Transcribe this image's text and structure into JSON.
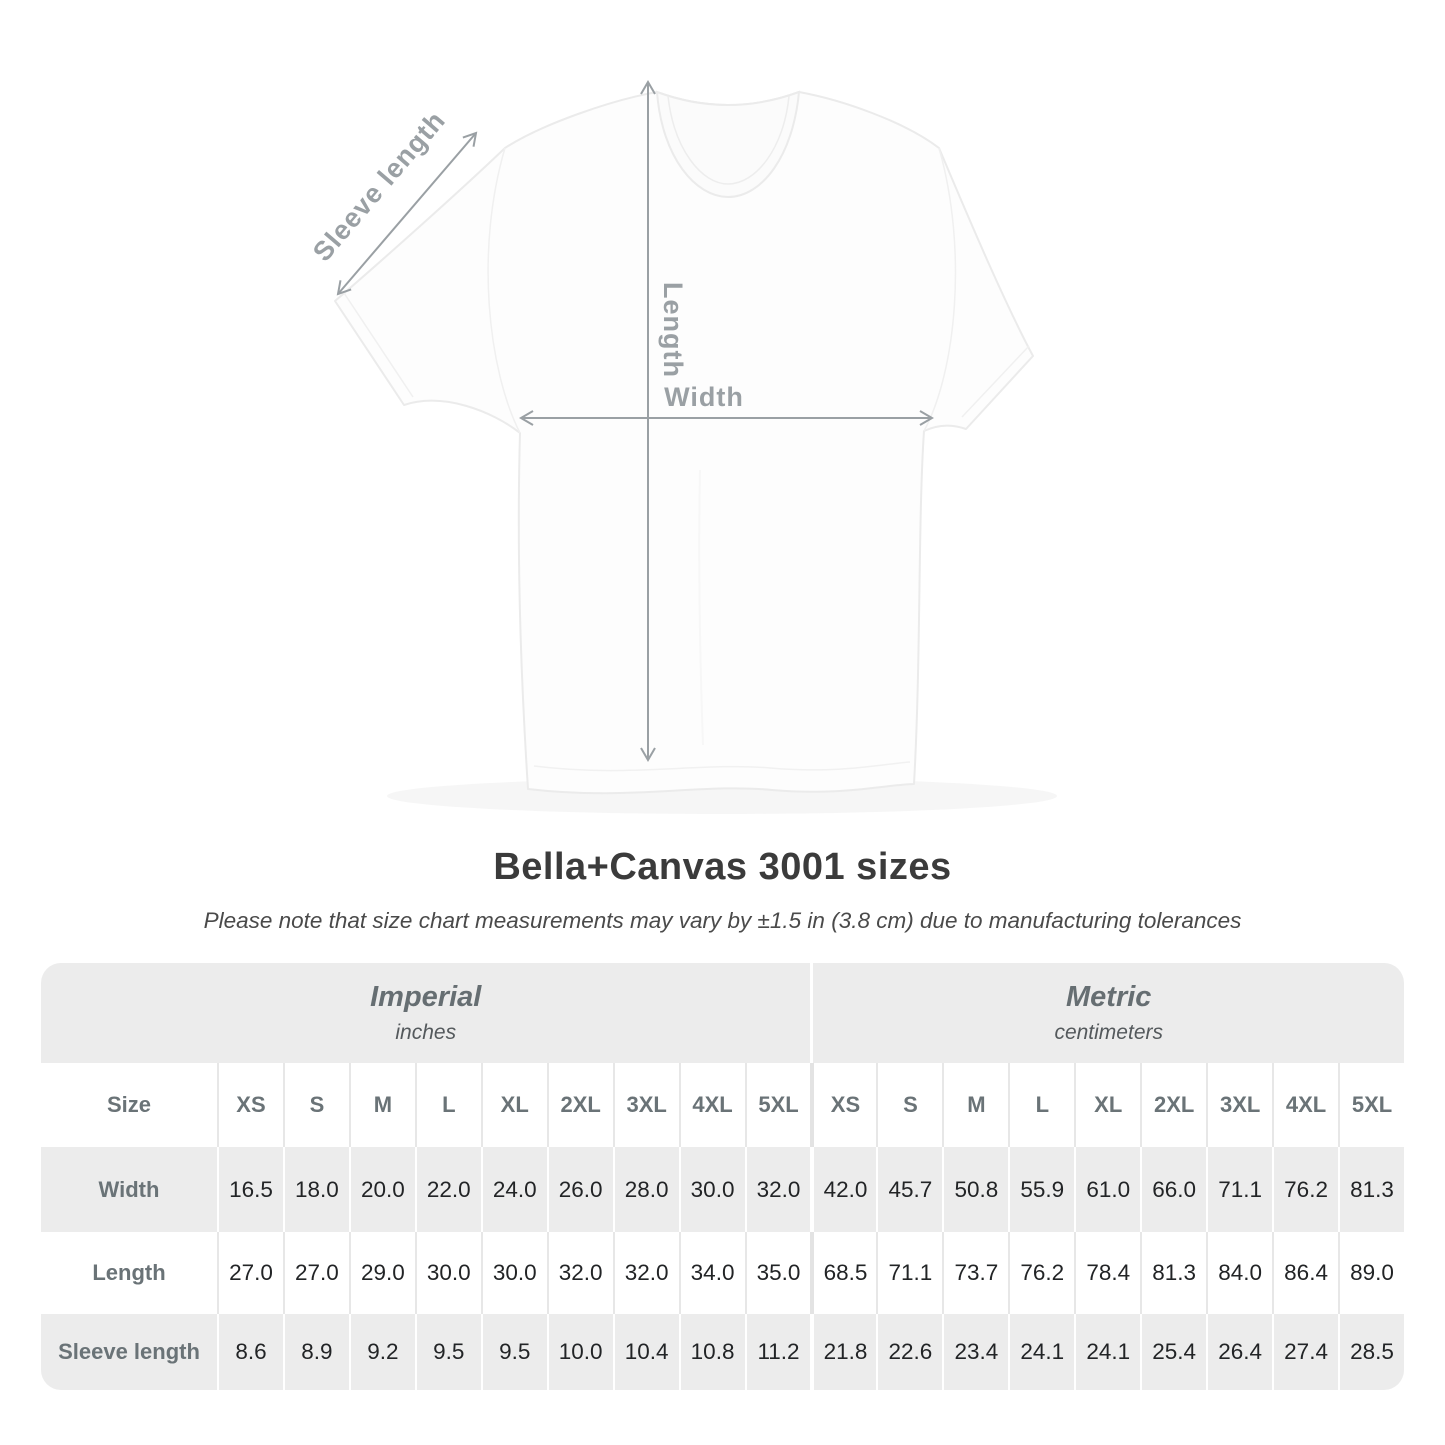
{
  "figure": {
    "sleeve_length_label": "Sleeve length",
    "length_label": "Length",
    "width_label": "Width"
  },
  "title": "Bella+Canvas 3001 sizes",
  "subtitle": "Please note that size chart measurements may vary by ±1.5 in (3.8 cm) due to manufacturing tolerances",
  "table": {
    "size_column_label": "Size",
    "unit_groups": [
      {
        "name": "Imperial",
        "unit": "inches"
      },
      {
        "name": "Metric",
        "unit": "centimeters"
      }
    ],
    "sizes": [
      "XS",
      "S",
      "M",
      "L",
      "XL",
      "2XL",
      "3XL",
      "4XL",
      "5XL"
    ],
    "rows": [
      {
        "label": "Width",
        "imperial": [
          "16.5",
          "18.0",
          "20.0",
          "22.0",
          "24.0",
          "26.0",
          "28.0",
          "30.0",
          "32.0"
        ],
        "metric": [
          "42.0",
          "45.7",
          "50.8",
          "55.9",
          "61.0",
          "66.0",
          "71.1",
          "76.2",
          "81.3"
        ]
      },
      {
        "label": "Length",
        "imperial": [
          "27.0",
          "27.0",
          "29.0",
          "30.0",
          "30.0",
          "32.0",
          "32.0",
          "34.0",
          "35.0"
        ],
        "metric": [
          "68.5",
          "71.1",
          "73.7",
          "76.2",
          "78.4",
          "81.3",
          "84.0",
          "86.4",
          "89.0"
        ]
      },
      {
        "label": "Sleeve length",
        "imperial": [
          "8.6",
          "8.9",
          "9.2",
          "9.5",
          "9.5",
          "10.0",
          "10.4",
          "10.8",
          "11.2"
        ],
        "metric": [
          "21.8",
          "22.6",
          "23.4",
          "24.1",
          "24.1",
          "25.4",
          "26.4",
          "27.4",
          "28.5"
        ]
      }
    ]
  },
  "chart_data": {
    "type": "table",
    "title": "Bella+Canvas 3001 sizes",
    "note": "Please note that size chart measurements may vary by ±1.5 in (3.8 cm) due to manufacturing tolerances",
    "units": {
      "imperial": "inches",
      "metric": "centimeters"
    },
    "sizes": [
      "XS",
      "S",
      "M",
      "L",
      "XL",
      "2XL",
      "3XL",
      "4XL",
      "5XL"
    ],
    "measurements": [
      {
        "name": "Width",
        "imperial": [
          16.5,
          18.0,
          20.0,
          22.0,
          24.0,
          26.0,
          28.0,
          30.0,
          32.0
        ],
        "metric": [
          42.0,
          45.7,
          50.8,
          55.9,
          61.0,
          66.0,
          71.1,
          76.2,
          81.3
        ]
      },
      {
        "name": "Length",
        "imperial": [
          27.0,
          27.0,
          29.0,
          30.0,
          30.0,
          32.0,
          32.0,
          34.0,
          35.0
        ],
        "metric": [
          68.5,
          71.1,
          73.7,
          76.2,
          78.4,
          81.3,
          84.0,
          86.4,
          89.0
        ]
      },
      {
        "name": "Sleeve length",
        "imperial": [
          8.6,
          8.9,
          9.2,
          9.5,
          9.5,
          10.0,
          10.4,
          10.8,
          11.2
        ],
        "metric": [
          21.8,
          22.6,
          23.4,
          24.1,
          24.1,
          25.4,
          26.4,
          27.4,
          28.5
        ]
      }
    ]
  },
  "colors": {
    "band_bg": "#ececec",
    "alt_row_bg": "#ececec",
    "header_text": "#6a7377",
    "value_text": "#222426",
    "arrow": "#9aa0a4",
    "title_text": "#3b3b3b"
  }
}
